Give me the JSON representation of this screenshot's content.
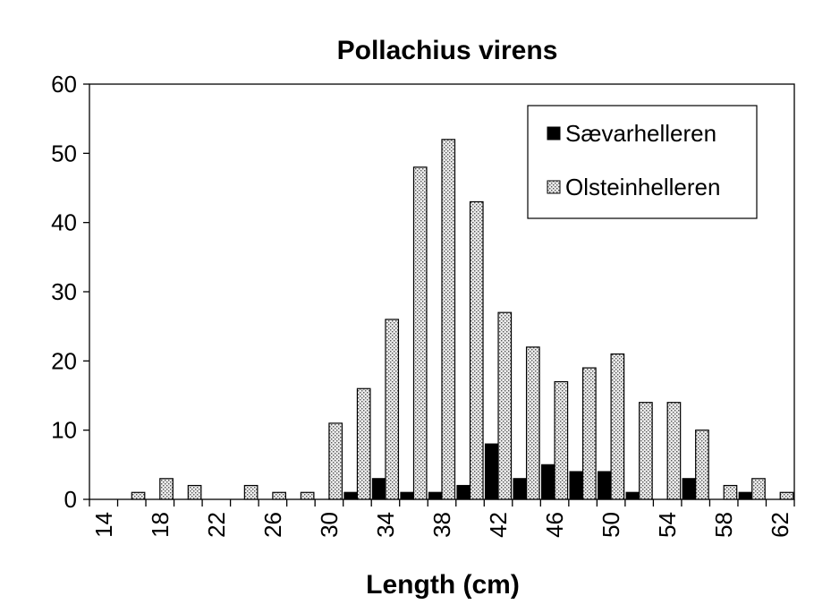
{
  "chart_data": {
    "type": "bar",
    "title": "Pollachius virens",
    "xlabel": "Length (cm)",
    "ylabel": "",
    "ylim": [
      0,
      60
    ],
    "yticks": [
      0,
      10,
      20,
      30,
      40,
      50,
      60
    ],
    "categories": [
      14,
      16,
      18,
      20,
      22,
      24,
      26,
      28,
      30,
      32,
      34,
      36,
      38,
      40,
      42,
      44,
      46,
      48,
      50,
      52,
      54,
      56,
      58,
      60,
      62
    ],
    "xtick_labels": [
      "14",
      "18",
      "22",
      "26",
      "30",
      "34",
      "38",
      "42",
      "46",
      "50",
      "54",
      "58",
      "62"
    ],
    "legend_position": "top-right",
    "series": [
      {
        "name": "Sævarhelleren",
        "color": "#000000",
        "values": [
          0,
          0,
          0,
          0,
          0,
          0,
          0,
          0,
          0,
          1,
          3,
          1,
          1,
          2,
          8,
          3,
          5,
          4,
          4,
          1,
          0,
          3,
          0,
          1,
          0
        ]
      },
      {
        "name": "Olsteinhelleren",
        "color": "#d9d9d9",
        "pattern": "dotted",
        "values": [
          0,
          1,
          3,
          2,
          0,
          2,
          1,
          1,
          11,
          16,
          26,
          48,
          52,
          43,
          27,
          22,
          17,
          19,
          21,
          14,
          14,
          10,
          2,
          3,
          1
        ]
      }
    ]
  }
}
